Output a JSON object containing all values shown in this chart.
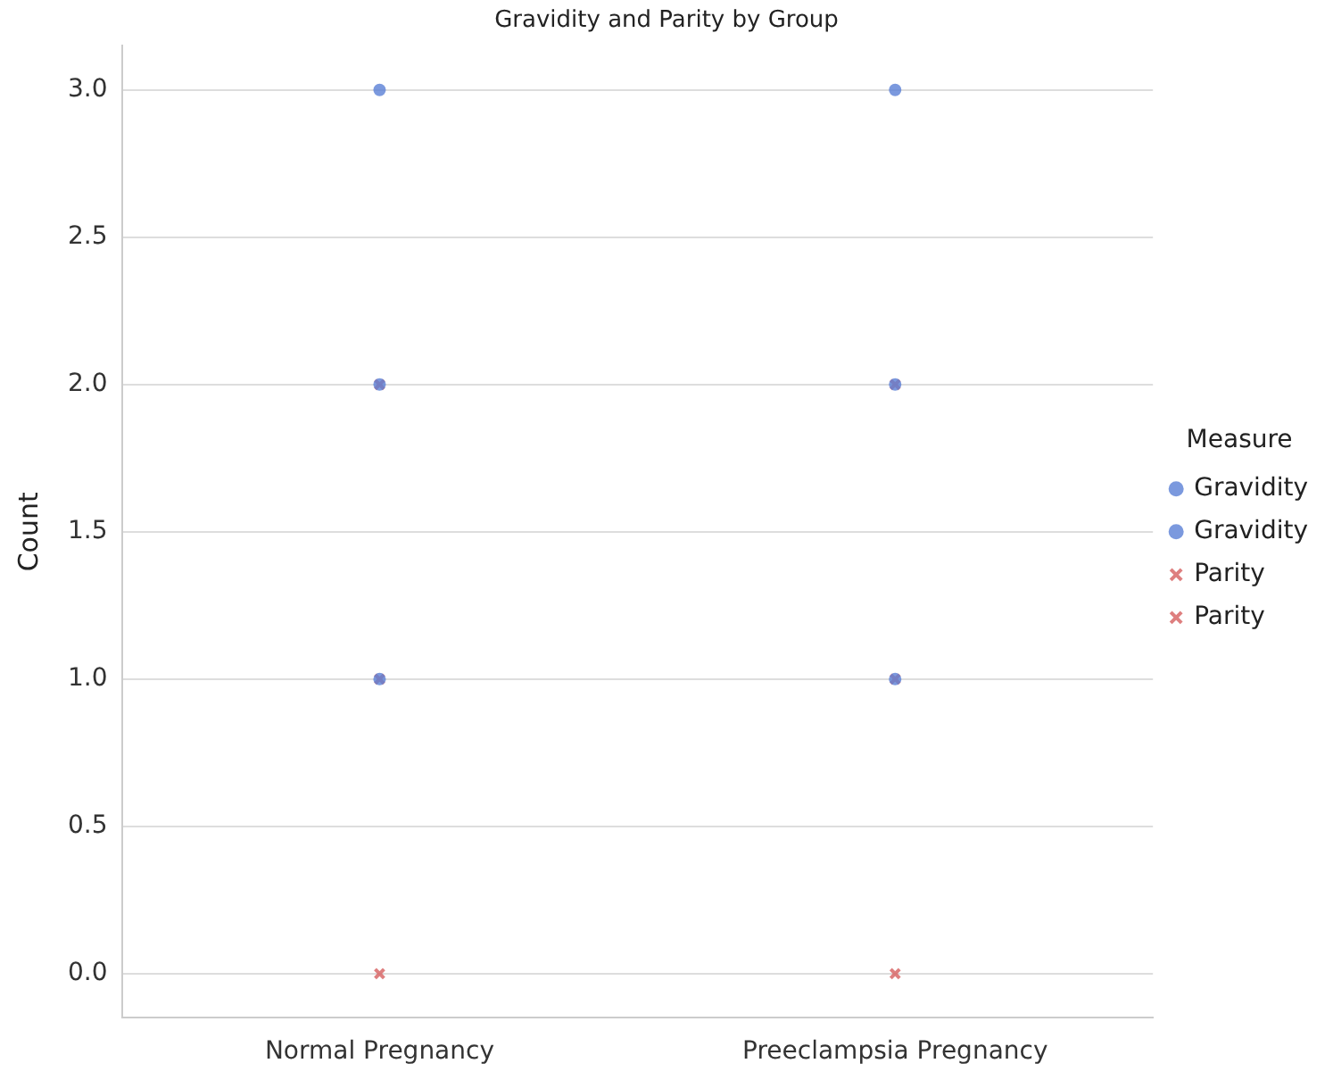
{
  "chart_data": {
    "type": "scatter",
    "title": "Gravidity and Parity by Group",
    "ylabel": "Count",
    "categories": [
      "Normal Pregnancy",
      "Preeclampsia Pregnancy"
    ],
    "series": [
      {
        "name": "Gravidity",
        "color": "#5a80d6",
        "marker": "circle",
        "x": [
          "Normal Pregnancy",
          "Normal Pregnancy",
          "Normal Pregnancy"
        ],
        "values": [
          3,
          2,
          1
        ]
      },
      {
        "name": "Gravidity",
        "color": "#5a80d6",
        "marker": "circle",
        "x": [
          "Preeclampsia Pregnancy",
          "Preeclampsia Pregnancy",
          "Preeclampsia Pregnancy"
        ],
        "values": [
          3,
          2,
          1
        ]
      },
      {
        "name": "Parity",
        "color": "#d65f5f",
        "marker": "cross",
        "x": [
          "Normal Pregnancy",
          "Normal Pregnancy",
          "Normal Pregnancy"
        ],
        "values": [
          2,
          1,
          0
        ]
      },
      {
        "name": "Parity",
        "color": "#d65f5f",
        "marker": "cross",
        "x": [
          "Preeclampsia Pregnancy",
          "Preeclampsia Pregnancy",
          "Preeclampsia Pregnancy"
        ],
        "values": [
          2,
          1,
          0
        ]
      }
    ],
    "ylim": [
      -0.15,
      3.15
    ],
    "yticks": [
      {
        "value": 0,
        "label": "0.0"
      },
      {
        "value": 0.5,
        "label": "0.5"
      },
      {
        "value": 1,
        "label": "1.0"
      },
      {
        "value": 1.5,
        "label": "1.5"
      },
      {
        "value": 2,
        "label": "2.0"
      },
      {
        "value": 2.5,
        "label": "2.5"
      },
      {
        "value": 3,
        "label": "3.0"
      }
    ],
    "grid": "y",
    "legend": "right",
    "legend_title": "Measure"
  }
}
